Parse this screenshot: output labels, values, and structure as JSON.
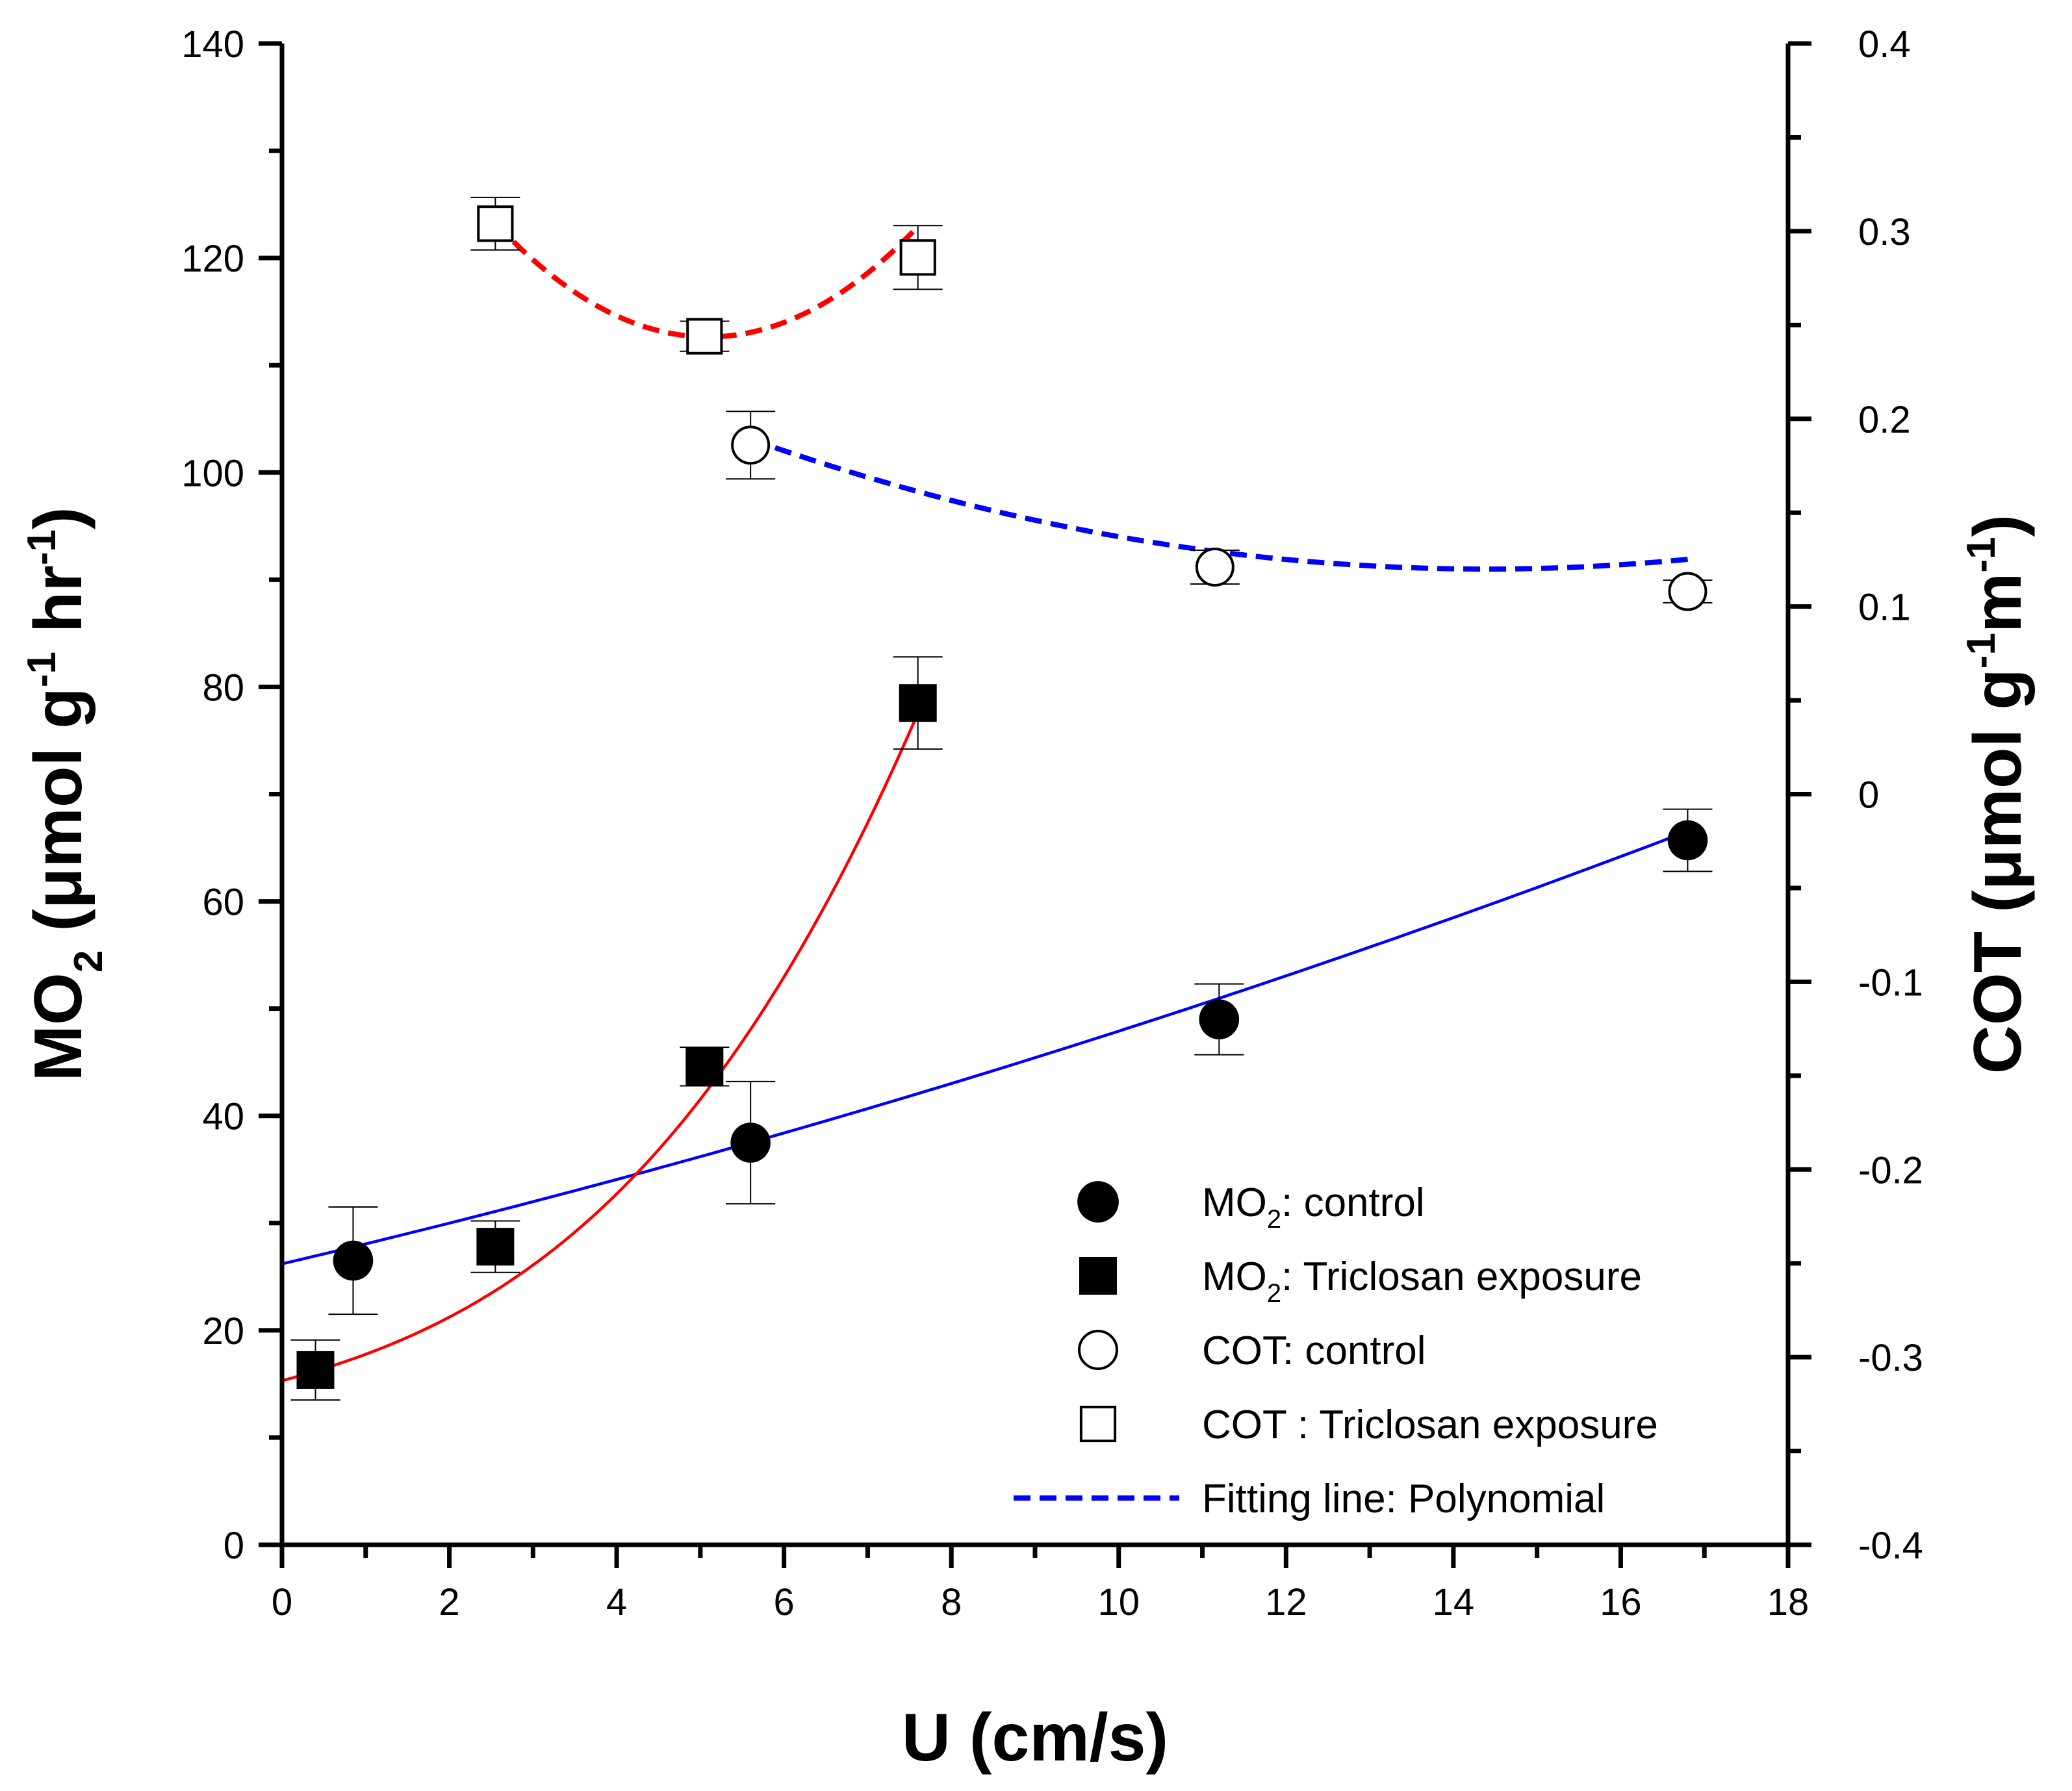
{
  "chart_data": {
    "type": "scatter",
    "x_axis": {
      "label": "U (cm/s)",
      "range": [
        0,
        18
      ],
      "ticks": [
        0,
        2,
        4,
        6,
        8,
        10,
        12,
        14,
        16,
        18
      ],
      "tick_labels": [
        "0",
        "2",
        "4",
        "6",
        "8",
        "10",
        "12",
        "14",
        "16",
        "18"
      ]
    },
    "y_left_axis": {
      "label": "MO2 (μmol g-1 hr-1)",
      "label_parts": {
        "main": "MO",
        "sub": "2",
        "rest_a": " (μmol g",
        "sup_a": "-1",
        "rest_b": " hr",
        "sup_b": "-1",
        "close": ")"
      },
      "range": [
        0,
        140
      ],
      "ticks": [
        0,
        20,
        40,
        60,
        80,
        100,
        120,
        140
      ],
      "tick_labels": [
        "0",
        "20",
        "40",
        "60",
        "80",
        "100",
        "120",
        "140"
      ]
    },
    "y_right_axis": {
      "label": "COT (μmol g-1 m-1)",
      "label_parts": {
        "main": "COT (μmol g",
        "sup_a": "-1",
        "rest_b": "m",
        "sup_b": "-1",
        "close": ")"
      },
      "range": [
        -0.4,
        0.4
      ],
      "ticks": [
        -0.4,
        -0.3,
        -0.2,
        -0.1,
        0,
        0.1,
        0.2,
        0.3,
        0.4
      ],
      "tick_labels": [
        "-0.4",
        "-0.3",
        "-0.2",
        "-0.1",
        "0",
        "0.1",
        "0.2",
        "0.3",
        "0.4"
      ]
    },
    "series": [
      {
        "name": "MO2: control",
        "axis": "left",
        "marker": "filled-circle",
        "points": [
          {
            "x": 0.85,
            "y": 26.5,
            "err": 5.0
          },
          {
            "x": 5.6,
            "y": 37.5,
            "err": 5.7
          },
          {
            "x": 11.2,
            "y": 49.0,
            "err": 3.3
          },
          {
            "x": 16.8,
            "y": 65.7,
            "err": 2.9
          }
        ],
        "fit": {
          "kind": "polynomial",
          "color": "#0000ff",
          "style": "solid",
          "coef": [
            26.2,
            1.83,
            0.034
          ],
          "x_range": [
            0,
            16.85
          ]
        }
      },
      {
        "name": "MO2: Triclosan exposure",
        "axis": "left",
        "marker": "filled-square",
        "points": [
          {
            "x": 0.4,
            "y": 16.3,
            "err": 2.8
          },
          {
            "x": 2.55,
            "y": 27.8,
            "err": 2.4
          },
          {
            "x": 5.05,
            "y": 44.6,
            "err": 1.8
          },
          {
            "x": 7.6,
            "y": 78.5,
            "err": 4.3
          }
        ],
        "fit": {
          "kind": "polynomial",
          "color": "#ff0000",
          "style": "solid",
          "coef": [
            15.3,
            2.1,
            0.3,
            0.066
          ],
          "x_range": [
            0,
            7.6
          ]
        }
      },
      {
        "name": "COT: control",
        "axis": "right",
        "marker": "open-circle",
        "points": [
          {
            "x": 5.6,
            "y": 0.186,
            "err": 0.018
          },
          {
            "x": 11.15,
            "y": 0.121,
            "err": 0.009
          },
          {
            "x": 16.8,
            "y": 0.108,
            "err": 0.006
          }
        ],
        "fit": {
          "kind": "polynomial",
          "color": "#0000ff",
          "style": "dashed",
          "coef": [
            0.3055,
            -0.025788,
            0.000896
          ],
          "x_range": [
            5.6,
            16.85
          ]
        }
      },
      {
        "name": "COT : Triclosan exposure",
        "axis": "right",
        "marker": "open-square",
        "points": [
          {
            "x": 2.55,
            "y": 0.304,
            "err": 0.014
          },
          {
            "x": 5.05,
            "y": 0.244,
            "err": 0.008
          },
          {
            "x": 7.6,
            "y": 0.286,
            "err": 0.017
          }
        ],
        "fit": {
          "kind": "polynomial",
          "color": "#ff0000",
          "style": "dashed",
          "coef": [
            0.48685,
            -0.0954696,
            0.00937
          ],
          "x_range": [
            2.55,
            7.6
          ]
        }
      }
    ],
    "legend": {
      "position": "bottom-right",
      "entries": [
        {
          "marker": "filled-circle",
          "main": "MO",
          "sub": "2",
          "rest": ": control"
        },
        {
          "marker": "filled-square",
          "main": "MO",
          "sub": "2",
          "rest": ": Triclosan exposure"
        },
        {
          "marker": "open-circle",
          "main": "COT: control",
          "sub": "",
          "rest": ""
        },
        {
          "marker": "open-square",
          "main": "COT : Triclosan exposure",
          "sub": "",
          "rest": ""
        },
        {
          "marker": "dashed-blue-line",
          "main": "Fitting line: Polynomial",
          "sub": "",
          "rest": ""
        }
      ]
    }
  }
}
